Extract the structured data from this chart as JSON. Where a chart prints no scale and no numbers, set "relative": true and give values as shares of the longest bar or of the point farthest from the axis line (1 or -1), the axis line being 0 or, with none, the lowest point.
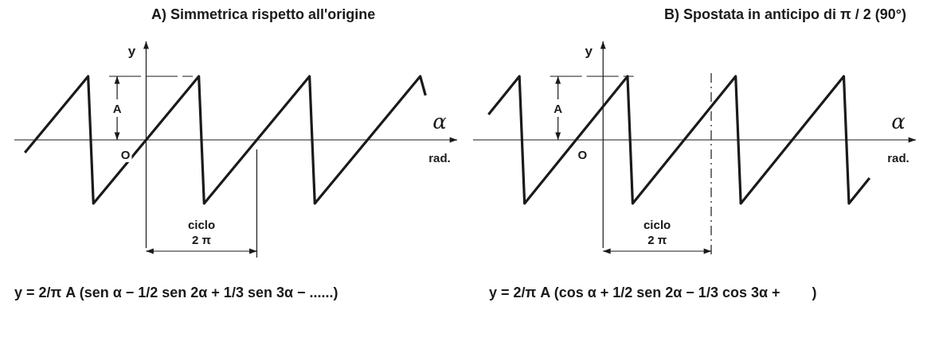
{
  "chart_data": [
    {
      "type": "line",
      "title": "A) Simmetrica rispetto all'origine",
      "xlabel": "α",
      "ylabel": "y",
      "relative": true,
      "color": "#1a1a1a",
      "categories": [
        null,
        null,
        null,
        null,
        null,
        null,
        null,
        null,
        null,
        null,
        null,
        null,
        null,
        null,
        null,
        null,
        null,
        null,
        null,
        null,
        null,
        null,
        null,
        null,
        null,
        null,
        null,
        null,
        null,
        null,
        null,
        null,
        null,
        null,
        null,
        null,
        null,
        null,
        null,
        null,
        null,
        null,
        null,
        null,
        null,
        null,
        null,
        null,
        null,
        null,
        null,
        null,
        null,
        null,
        null,
        null,
        null,
        null,
        null,
        null,
        null,
        null,
        null,
        null,
        null,
        null,
        null,
        null,
        null,
        null,
        null,
        null,
        null,
        null,
        null,
        null,
        null
      ],
      "values": [
        -0.2,
        -0.1,
        0,
        0.1,
        0.2,
        0.3,
        0.4,
        0.5,
        0.6,
        0.7,
        0.8,
        0.9,
        1,
        -1,
        -0.9,
        -0.8,
        -0.7,
        -0.6,
        -0.5,
        -0.4,
        -0.3,
        -0.2,
        -0.1,
        0,
        0.1,
        0.2,
        0.3,
        0.4,
        0.5,
        0.6,
        0.7,
        0.8,
        0.9,
        1,
        -1,
        -0.9,
        -0.8,
        -0.7,
        -0.6,
        -0.5,
        -0.4,
        -0.3,
        -0.2,
        -0.1,
        0,
        0.1,
        0.2,
        0.3,
        0.4,
        0.5,
        0.6,
        0.7,
        0.8,
        0.9,
        1,
        -1,
        -0.9,
        -0.8,
        -0.7,
        -0.6,
        -0.5,
        -0.4,
        -0.3,
        -0.2,
        -0.1,
        0,
        0.1,
        0.2,
        0.3,
        0.4,
        0.5,
        0.6,
        0.7,
        0.8,
        0.9,
        1,
        0.7
      ],
      "annotations": [
        "O",
        "A",
        "rad.",
        "ciclo 2 π",
        "y = 2/π A (sen α − 1/2 sen 2α + 1/3 sen 3α − ......)"
      ]
    },
    {
      "type": "line",
      "title": "B) Spostata in anticipo di π / 2 (90°)",
      "xlabel": "α",
      "ylabel": "y",
      "relative": true,
      "color": "#1a1a1a",
      "categories": [
        null,
        null,
        null,
        null,
        null,
        null,
        null,
        null,
        null,
        null,
        null,
        null,
        null,
        null,
        null,
        null,
        null,
        null,
        null,
        null,
        null,
        null,
        null,
        null,
        null,
        null,
        null,
        null,
        null,
        null,
        null,
        null,
        null,
        null,
        null,
        null,
        null,
        null,
        null,
        null,
        null,
        null,
        null,
        null,
        null,
        null,
        null,
        null,
        null,
        null,
        null,
        null,
        null,
        null,
        null,
        null,
        null,
        null,
        null,
        null,
        null,
        null,
        null,
        null,
        null,
        null,
        null,
        null,
        null,
        null,
        null,
        null,
        null,
        null,
        null
      ],
      "values": [
        0.4,
        0.5,
        0.6,
        0.7,
        0.8,
        0.9,
        1,
        -1,
        -0.9,
        -0.8,
        -0.7,
        -0.6,
        -0.5,
        -0.4,
        -0.3,
        -0.2,
        -0.1,
        0,
        0.1,
        0.2,
        0.3,
        0.4,
        0.5,
        0.6,
        0.7,
        0.8,
        0.9,
        1,
        -1,
        -0.9,
        -0.8,
        -0.7,
        -0.6,
        -0.5,
        -0.4,
        -0.3,
        -0.2,
        -0.1,
        0,
        0.1,
        0.2,
        0.3,
        0.4,
        0.5,
        0.6,
        0.7,
        0.8,
        0.9,
        1,
        -1,
        -0.9,
        -0.8,
        -0.7,
        -0.6,
        -0.5,
        -0.4,
        -0.3,
        -0.2,
        -0.1,
        0,
        0.1,
        0.2,
        0.3,
        0.4,
        0.5,
        0.6,
        0.7,
        0.8,
        0.9,
        1,
        -1,
        -0.9,
        -0.8,
        -0.7,
        -0.6
      ],
      "annotations": [
        "O",
        "A",
        "rad.",
        "ciclo 2 π",
        "y = 2/π A (cos α + 1/2 sen 2α − 1/3 cos 3α +        )"
      ]
    }
  ]
}
